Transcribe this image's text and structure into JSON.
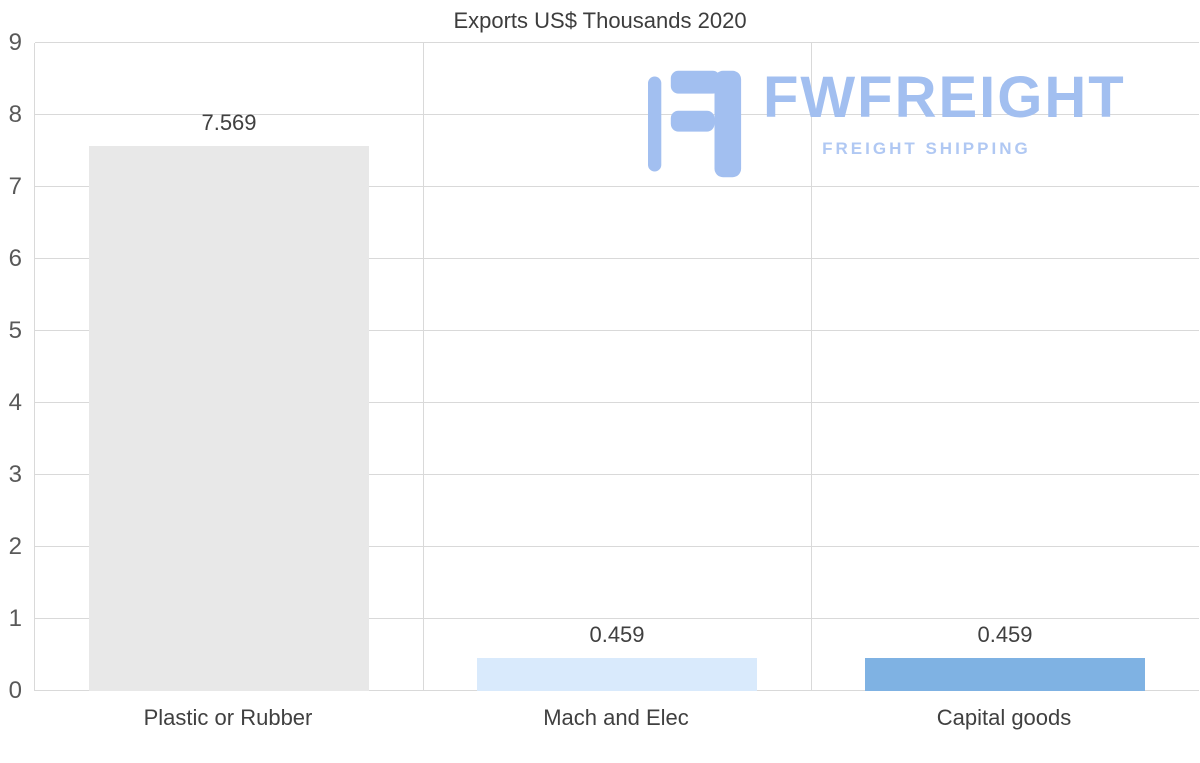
{
  "watermark": {
    "brand": "FWFREIGHT",
    "tagline": "FREIGHT SHIPPING"
  },
  "chart_data": {
    "type": "bar",
    "title": "Exports US$ Thousands 2020",
    "categories": [
      "Plastic or Rubber",
      "Mach and Elec",
      "Capital goods"
    ],
    "values": [
      7.569,
      0.459,
      0.459
    ],
    "value_labels": [
      "7.569",
      "0.459",
      "0.459"
    ],
    "bar_colors": [
      "#e8e8e8",
      "#d9eafc",
      "#7fb2e3"
    ],
    "ylim": [
      0,
      9
    ],
    "yticks": [
      0,
      1,
      2,
      3,
      4,
      5,
      6,
      7,
      8,
      9
    ],
    "grid": true,
    "legend": false,
    "xlabel": "",
    "ylabel": ""
  },
  "colors": {
    "grid": "#d9d9d9",
    "axis_text": "#595959",
    "title_text": "#3d3d3d",
    "label_text": "#404040",
    "logo": "#a2bff0",
    "logo_tagline": "#b0c8f3"
  }
}
